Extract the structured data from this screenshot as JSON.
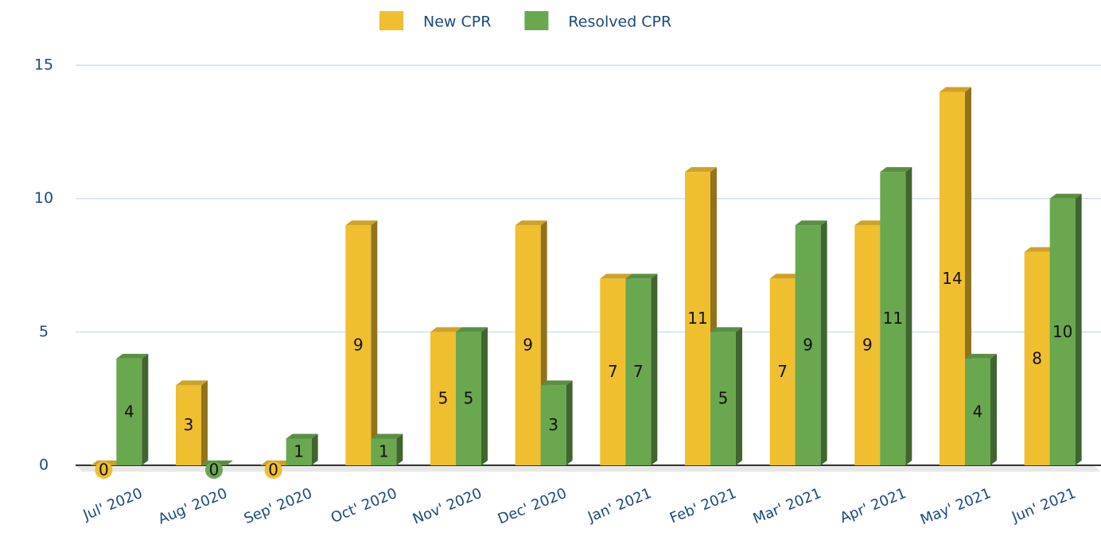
{
  "chart_data": {
    "type": "bar",
    "categories": [
      "Jul' 2020",
      "Aug' 2020",
      "Sep' 2020",
      "Oct' 2020",
      "Nov' 2020",
      "Dec' 2020",
      "Jan' 2021",
      "Feb' 2021",
      "Mar' 2021",
      "Apr' 2021",
      "May' 2021",
      "Jun' 2021"
    ],
    "series": [
      {
        "name": "New CPR",
        "color": "#f0bf2f",
        "values": [
          0,
          3,
          0,
          9,
          5,
          9,
          7,
          11,
          7,
          9,
          14,
          8
        ]
      },
      {
        "name": "Resolved CPR",
        "color": "#6aa84f",
        "values": [
          4,
          0,
          1,
          1,
          5,
          3,
          7,
          5,
          9,
          11,
          4,
          10
        ]
      }
    ],
    "ylim": [
      0,
      15
    ],
    "yticks": [
      0,
      5,
      10,
      15
    ],
    "grid": true,
    "legend": "top"
  }
}
